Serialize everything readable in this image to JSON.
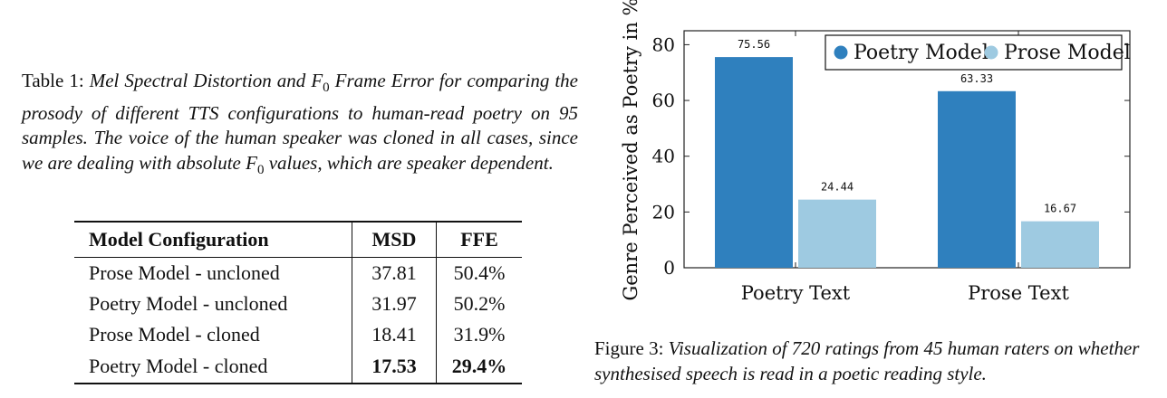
{
  "table_caption": {
    "label": "Table 1:",
    "text_html": "Mel Spectral Distortion and F<sub style=\"font-style:normal;font-size:15px\">0</sub> Frame Error for comparing the prosody of different TTS configurations to human-read poetry on 95 samples. The voice of the human speaker was cloned in all cases, since we are dealing with absolute F<sub style=\"font-style:normal;font-size:15px\">0</sub> values, which are speaker dependent."
  },
  "table": {
    "headers": [
      "Model Configuration",
      "MSD",
      "FFE"
    ],
    "rows": [
      {
        "config": "Prose Model - uncloned",
        "msd": "37.81",
        "ffe": "50.4%",
        "bold": false
      },
      {
        "config": "Poetry Model - uncloned",
        "msd": "31.97",
        "ffe": "50.2%",
        "bold": false
      },
      {
        "config": "Prose Model - cloned",
        "msd": "18.41",
        "ffe": "31.9%",
        "bold": false
      },
      {
        "config": "Poetry Model - cloned",
        "msd": "17.53",
        "ffe": "29.4%",
        "bold": true
      }
    ]
  },
  "chart_data": {
    "type": "bar",
    "categories": [
      "Poetry Text",
      "Prose Text"
    ],
    "series": [
      {
        "name": "Poetry Model",
        "values": [
          75.56,
          63.33
        ],
        "color": "#2f80be"
      },
      {
        "name": "Prose Model",
        "values": [
          24.44,
          16.67
        ],
        "color": "#9ecae1"
      }
    ],
    "data_labels": [
      [
        "75.56",
        "63.33"
      ],
      [
        "24.44",
        "16.67"
      ]
    ],
    "ylabel": "Genre Perceived as Poetry in %",
    "xlabel": "",
    "ylim": [
      0,
      85
    ],
    "yticks": [
      0,
      20,
      40,
      60,
      80
    ],
    "legend_position": "top-right",
    "grid": false
  },
  "figure_caption": {
    "label": "Figure 3:",
    "text": "Visualization of 720 ratings from 45 human raters on whether synthesised speech is read in a poetic reading style."
  }
}
